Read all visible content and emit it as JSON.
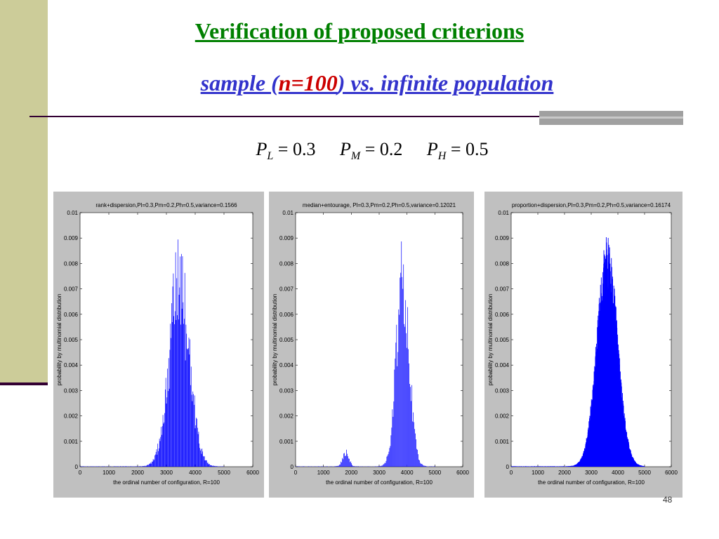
{
  "slide": {
    "title": "Verification of proposed criterions",
    "subtitle_pre": "sample (",
    "subtitle_n": "n=100",
    "subtitle_post": ") vs. infinite population",
    "page_number": "48"
  },
  "formula": [
    {
      "var": "P",
      "sub": "L",
      "op": "= 0.3"
    },
    {
      "var": "P",
      "sub": "M",
      "op": "= 0.2"
    },
    {
      "var": "P",
      "sub": "H",
      "op": "= 0.5"
    }
  ],
  "colors": {
    "side_band": "#cccc99",
    "title": "#008000",
    "subtitle": "#3333cc",
    "highlight": "#cc0000",
    "series": "#0000ff"
  },
  "chart_data": [
    {
      "type": "bar",
      "title": "rank+dispersion,Pl=0.3,Pm=0.2,Ph=0.5,variance=0.1566",
      "xlabel": "the ordinal number of configuration,  R=100",
      "ylabel": "probability by multinomial distribution",
      "xlim": [
        0,
        6000
      ],
      "ylim": [
        0,
        0.01
      ],
      "xticks": [
        "0",
        "1000",
        "2000",
        "3000",
        "4000",
        "5000",
        "6000"
      ],
      "yticks": [
        "0",
        "0.001",
        "0.002",
        "0.003",
        "0.004",
        "0.005",
        "0.006",
        "0.007",
        "0.008",
        "0.009",
        "0.01"
      ],
      "peaks": [
        {
          "center": 3450,
          "sigma": 350,
          "height": 0.0091
        }
      ],
      "range": [
        0,
        5000
      ],
      "spacing": 20,
      "sparse": true
    },
    {
      "type": "bar",
      "title": "median+entourage, Pl=0.3,Pm=0.2,Ph=0.5,variance=0.12021",
      "xlabel": "the ordinal number of configuration,  R=100",
      "ylabel": "probability by multinomial distribution",
      "xlim": [
        0,
        6000
      ],
      "ylim": [
        0,
        0.01
      ],
      "xticks": [
        "0",
        "1000",
        "2000",
        "3000",
        "4000",
        "5000",
        "6000"
      ],
      "yticks": [
        "0",
        "0.001",
        "0.002",
        "0.003",
        "0.004",
        "0.005",
        "0.006",
        "0.007",
        "0.008",
        "0.009",
        "0.01"
      ],
      "peaks": [
        {
          "center": 1800,
          "sigma": 110,
          "height": 0.0007
        },
        {
          "center": 3850,
          "sigma": 230,
          "height": 0.0091
        }
      ],
      "range": [
        0,
        5000
      ],
      "spacing": 25,
      "sparse": true
    },
    {
      "type": "bar",
      "title": "proportion+dispersion,Pl=0.3,Pm=0.2,Ph=0.5,variance=0.16174",
      "xlabel": "the ordinal number of configuration,  R=100",
      "ylabel": "probability by multinomial distribution",
      "xlim": [
        0,
        6000
      ],
      "ylim": [
        0,
        0.01
      ],
      "xticks": [
        "0",
        "1000",
        "2000",
        "3000",
        "4000",
        "5000",
        "6000"
      ],
      "yticks": [
        "0",
        "0.001",
        "0.002",
        "0.003",
        "0.004",
        "0.005",
        "0.006",
        "0.007",
        "0.008",
        "0.009",
        "0.01"
      ],
      "peaks": [
        {
          "center": 3600,
          "sigma": 380,
          "height": 0.0091
        }
      ],
      "range": [
        0,
        5000
      ],
      "spacing": 6,
      "sparse": false
    }
  ]
}
